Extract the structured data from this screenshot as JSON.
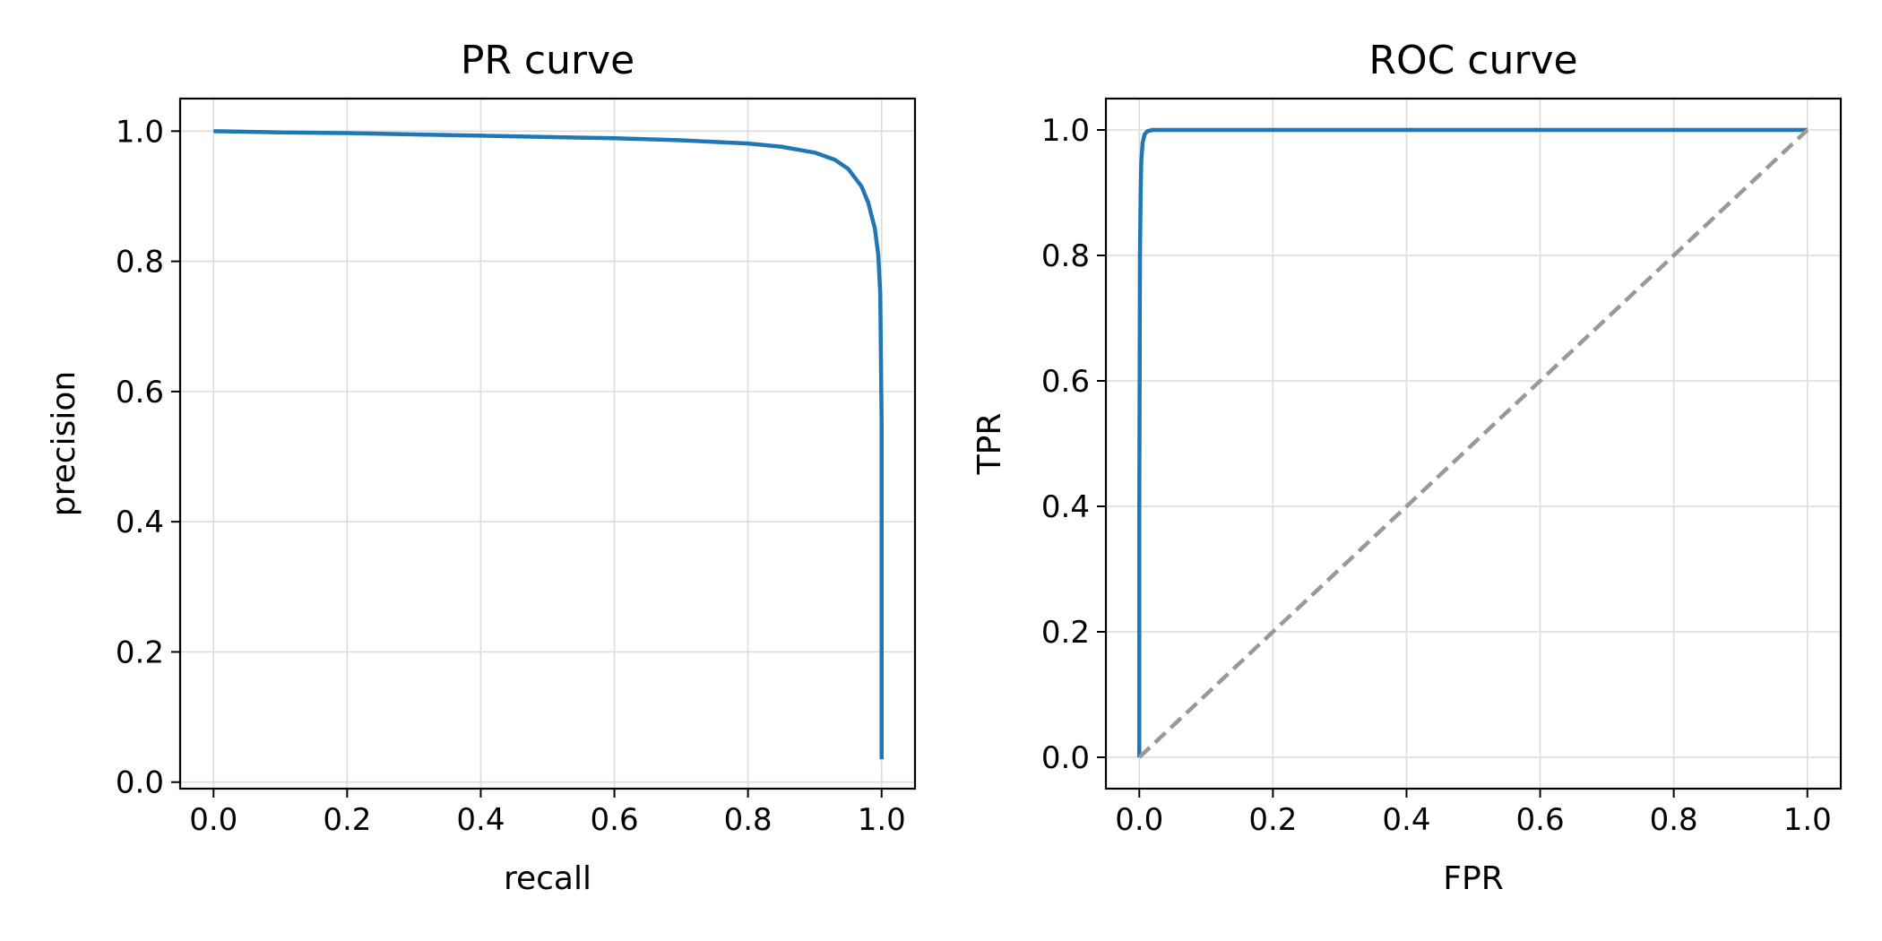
{
  "chart_data": [
    {
      "type": "line",
      "title": "PR curve",
      "xlabel": "recall",
      "ylabel": "precision",
      "xlim": [
        -0.05,
        1.05
      ],
      "ylim": [
        -0.01,
        1.05
      ],
      "xticks": [
        0.0,
        0.2,
        0.4,
        0.6,
        0.8,
        1.0
      ],
      "yticks": [
        0.0,
        0.2,
        0.4,
        0.6,
        0.8,
        1.0
      ],
      "xtick_labels": [
        "0.0",
        "0.2",
        "0.4",
        "0.6",
        "0.8",
        "1.0"
      ],
      "ytick_labels": [
        "0.0",
        "0.2",
        "0.4",
        "0.6",
        "0.8",
        "1.0"
      ],
      "grid": true,
      "series": [
        {
          "color": "#1f77b4",
          "style": "solid",
          "x": [
            0.0,
            0.1,
            0.2,
            0.3,
            0.4,
            0.5,
            0.6,
            0.7,
            0.8,
            0.85,
            0.9,
            0.93,
            0.95,
            0.97,
            0.98,
            0.99,
            0.995,
            0.998,
            1.0,
            1.0,
            1.0,
            1.0,
            1.0,
            1.0
          ],
          "y": [
            1.0,
            0.998,
            0.997,
            0.995,
            0.993,
            0.991,
            0.989,
            0.986,
            0.981,
            0.976,
            0.967,
            0.956,
            0.942,
            0.915,
            0.89,
            0.85,
            0.81,
            0.75,
            0.55,
            0.4,
            0.2,
            0.1,
            0.05,
            0.035
          ]
        }
      ]
    },
    {
      "type": "line",
      "title": "ROC curve",
      "xlabel": "FPR",
      "ylabel": "TPR",
      "xlim": [
        -0.05,
        1.05
      ],
      "ylim": [
        -0.05,
        1.05
      ],
      "xticks": [
        0.0,
        0.2,
        0.4,
        0.6,
        0.8,
        1.0
      ],
      "yticks": [
        0.0,
        0.2,
        0.4,
        0.6,
        0.8,
        1.0
      ],
      "xtick_labels": [
        "0.0",
        "0.2",
        "0.4",
        "0.6",
        "0.8",
        "1.0"
      ],
      "ytick_labels": [
        "0.0",
        "0.2",
        "0.4",
        "0.6",
        "0.8",
        "1.0"
      ],
      "grid": true,
      "series": [
        {
          "color": "#1f77b4",
          "style": "solid",
          "x": [
            0.0,
            0.0,
            0.001,
            0.002,
            0.003,
            0.005,
            0.008,
            0.012,
            0.02,
            0.05,
            0.2,
            0.5,
            1.0
          ],
          "y": [
            0.0,
            0.4,
            0.8,
            0.9,
            0.95,
            0.98,
            0.993,
            0.998,
            1.0,
            1.0,
            1.0,
            1.0,
            1.0
          ]
        },
        {
          "color": "#999999",
          "style": "dashed",
          "x": [
            0.0,
            1.0
          ],
          "y": [
            0.0,
            1.0
          ]
        }
      ]
    }
  ]
}
